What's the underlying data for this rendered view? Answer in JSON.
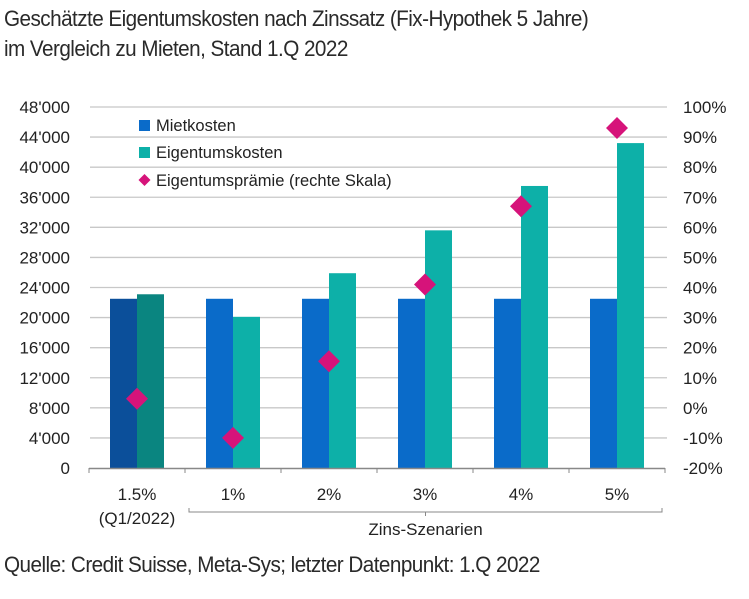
{
  "chart_data": {
    "type": "bar",
    "title_line1": "Geschätzte Eigentumskosten nach Zinssatz (Fix-Hypothek 5 Jahre)",
    "title_line2": "im Vergleich zu Mieten, Stand 1.Q 2022",
    "source": "Quelle: Credit Suisse, Meta-Sys; letzter Datenpunkt: 1.Q 2022",
    "categories": [
      "1.5%",
      "1%",
      "2%",
      "3%",
      "4%",
      "5%"
    ],
    "category_sublabels": [
      "(Q1/2022)",
      "",
      "",
      "",
      "",
      ""
    ],
    "group_label": "Zins-Szenarien",
    "series": [
      {
        "name": "Mietkosten",
        "type": "bar",
        "axis": "left",
        "color": "#0a6bc9",
        "highlight_color": "#0b4f9a",
        "values": [
          22500,
          22500,
          22500,
          22500,
          22500,
          22500
        ]
      },
      {
        "name": "Eigentumskosten",
        "type": "bar",
        "axis": "left",
        "color": "#0db0a8",
        "highlight_color": "#0a8580",
        "values": [
          23100,
          20100,
          25900,
          31600,
          37500,
          43200
        ]
      },
      {
        "name": "Eigentumsprämie (rechte Skala)",
        "type": "scatter",
        "marker": "diamond",
        "axis": "right",
        "color": "#d6137a",
        "values": [
          3,
          -10,
          15.5,
          41,
          67,
          93
        ]
      }
    ],
    "left_axis": {
      "min": 0,
      "max": 48000,
      "step": 4000,
      "tick_labels": [
        "0",
        "4'000",
        "8'000",
        "12'000",
        "16'000",
        "20'000",
        "24'000",
        "28'000",
        "32'000",
        "36'000",
        "40'000",
        "44'000",
        "48'000"
      ]
    },
    "right_axis": {
      "min": -20,
      "max": 100,
      "step": 10,
      "tick_labels": [
        "-20%",
        "-10%",
        "0%",
        "10%",
        "20%",
        "30%",
        "40%",
        "50%",
        "60%",
        "70%",
        "80%",
        "90%",
        "100%"
      ]
    },
    "grid": true,
    "legend_position": "top-left"
  }
}
